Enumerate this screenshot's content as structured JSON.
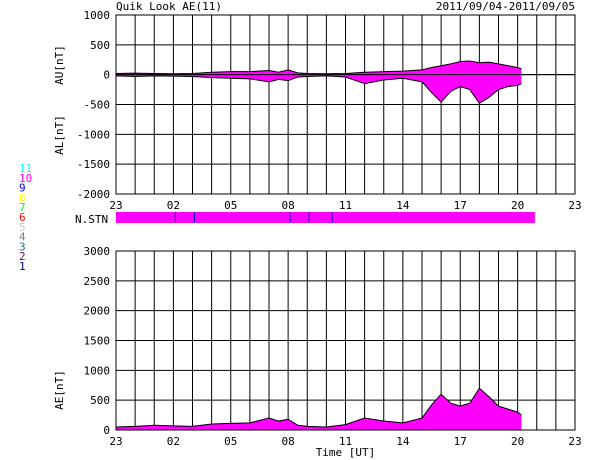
{
  "header": {
    "title": "Quik Look AE(11)",
    "date_range": "2011/09/04-2011/09/05"
  },
  "chart_data": [
    {
      "type": "area",
      "panel": "AU/AL",
      "ylabel_upper": "AU[nT]",
      "ylabel_lower": "AL[nT]",
      "ylim": [
        -2000,
        1000
      ],
      "yticks": [
        1000,
        500,
        0,
        -500,
        -1000,
        -1500,
        -2000
      ],
      "xlim": [
        0,
        24
      ],
      "xtick_labels": [
        "23",
        "02",
        "05",
        "08",
        "11",
        "14",
        "17",
        "20",
        "23"
      ],
      "grid": true,
      "fill_color": "#ff00ff",
      "series": [
        {
          "name": "AU",
          "x": [
            0,
            1,
            2,
            3,
            4,
            5,
            6,
            7,
            8,
            8.5,
            9,
            9.5,
            10,
            11,
            12,
            13,
            14,
            15,
            16,
            16.5,
            17,
            17.5,
            18,
            18.5,
            19,
            19.5,
            20,
            20.5,
            21,
            21.2
          ],
          "values": [
            20,
            25,
            20,
            15,
            20,
            40,
            50,
            50,
            70,
            40,
            80,
            30,
            20,
            15,
            20,
            40,
            50,
            60,
            80,
            120,
            150,
            180,
            220,
            230,
            200,
            210,
            180,
            150,
            120,
            100
          ]
        },
        {
          "name": "AL",
          "x": [
            0,
            1,
            2,
            3,
            4,
            5,
            6,
            7,
            8,
            8.5,
            9,
            9.5,
            10,
            11,
            12,
            13,
            14,
            15,
            16,
            16.5,
            17,
            17.5,
            18,
            18.5,
            19,
            19.5,
            20,
            20.5,
            21,
            21.2
          ],
          "values": [
            -20,
            -30,
            -20,
            -25,
            -30,
            -50,
            -60,
            -70,
            -120,
            -80,
            -100,
            -40,
            -30,
            -20,
            -40,
            -150,
            -90,
            -60,
            -120,
            -300,
            -460,
            -280,
            -200,
            -250,
            -480,
            -380,
            -250,
            -200,
            -180,
            -150
          ]
        }
      ]
    },
    {
      "type": "area",
      "panel": "AE",
      "ylabel": "AE[nT]",
      "xlabel": "Time [UT]",
      "ylim": [
        0,
        3000
      ],
      "yticks": [
        3000,
        2500,
        2000,
        1500,
        1000,
        500,
        0
      ],
      "xlim": [
        0,
        24
      ],
      "xtick_labels": [
        "23",
        "02",
        "05",
        "08",
        "11",
        "14",
        "17",
        "20",
        "23"
      ],
      "grid": true,
      "fill_color": "#ff00ff",
      "series": [
        {
          "name": "AE",
          "x": [
            0,
            1,
            2,
            3,
            4,
            5,
            6,
            7,
            8,
            8.5,
            9,
            9.5,
            10,
            11,
            12,
            13,
            14,
            15,
            16,
            16.5,
            17,
            17.5,
            18,
            18.5,
            19,
            19.5,
            20,
            20.5,
            21,
            21.2
          ],
          "values": [
            50,
            60,
            80,
            70,
            60,
            100,
            110,
            120,
            200,
            150,
            180,
            80,
            60,
            50,
            90,
            200,
            150,
            120,
            200,
            420,
            600,
            450,
            400,
            450,
            700,
            560,
            400,
            350,
            300,
            250
          ]
        }
      ]
    }
  ],
  "station_bar": {
    "label": "N.STN",
    "color": "#ff00ff",
    "tick_color": "#0000cc",
    "end_x": 21.9,
    "ticks_x": [
      3.1,
      4.1,
      9.1,
      10.1,
      11.3
    ]
  },
  "station_legend": [
    {
      "label": "11",
      "color": "#00ffff"
    },
    {
      "label": "10",
      "color": "#ff00ff"
    },
    {
      "label": "9",
      "color": "#0000ff"
    },
    {
      "label": "8",
      "color": "#ffff00"
    },
    {
      "label": "7",
      "color": "#00ff00"
    },
    {
      "label": "6",
      "color": "#ff0000"
    },
    {
      "label": "5",
      "color": "#c8c8c8"
    },
    {
      "label": "4",
      "color": "#808080"
    },
    {
      "label": "3",
      "color": "#008080"
    },
    {
      "label": "2",
      "color": "#800080"
    },
    {
      "label": "1",
      "color": "#000080"
    }
  ]
}
